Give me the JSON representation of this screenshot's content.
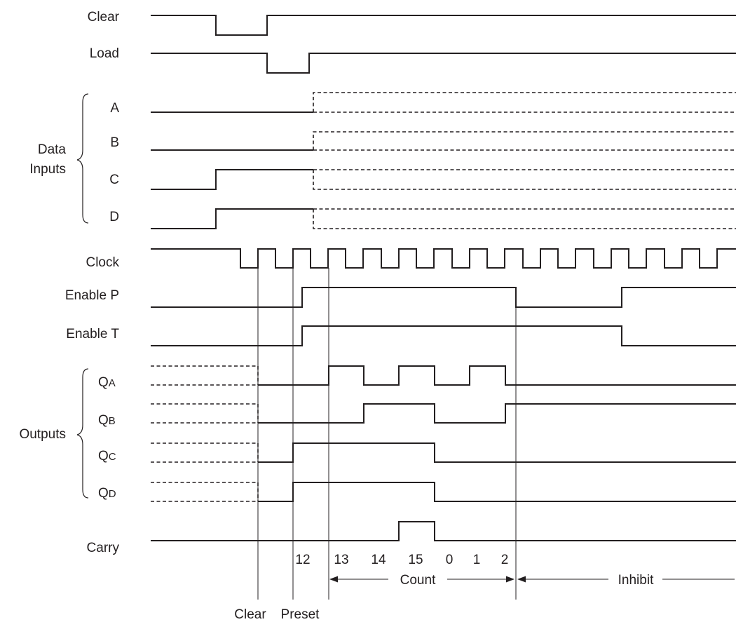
{
  "signals": {
    "clear": "Clear",
    "load": "Load",
    "a": "A",
    "b": "B",
    "c": "C",
    "d": "D",
    "clock": "Clock",
    "enable_p": "Enable P",
    "enable_t": "Enable T",
    "qa": "Q",
    "qa_sub": "A",
    "qb": "Q",
    "qb_sub": "B",
    "qc": "Q",
    "qc_sub": "C",
    "qd": "Q",
    "qd_sub": "D",
    "carry": "Carry"
  },
  "groups": {
    "data_inputs_line1": "Data",
    "data_inputs_line2": "Inputs",
    "outputs": "Outputs"
  },
  "counts": [
    "12",
    "13",
    "14",
    "15",
    "0",
    "1",
    "2"
  ],
  "phases": {
    "count": "Count",
    "inhibit": "Inhibit",
    "clear": "Clear",
    "preset": "Preset"
  }
}
